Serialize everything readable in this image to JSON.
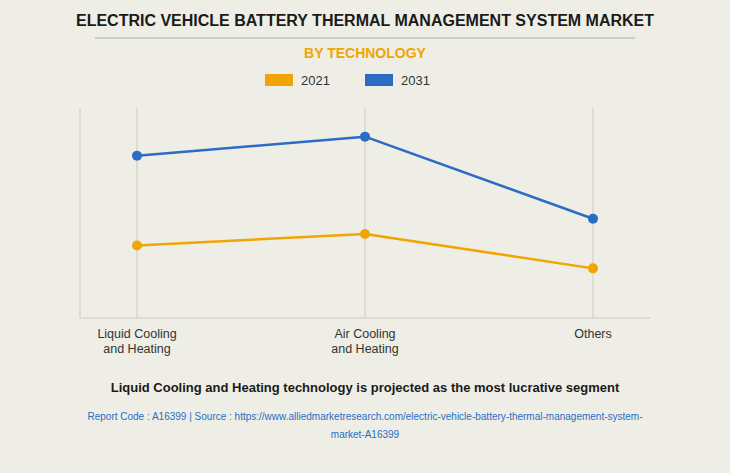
{
  "chart_data": {
    "type": "line",
    "title": "ELECTRIC VEHICLE BATTERY THERMAL MANAGEMENT SYSTEM MARKET",
    "subtitle": "BY TECHNOLOGY",
    "categories": [
      "Liquid Cooling\nand Heating",
      "Air Cooling\nand Heating",
      "Others"
    ],
    "series": [
      {
        "name": "2021",
        "color": "#F0A500",
        "values": [
          0.38,
          0.44,
          0.26
        ],
        "marker": "o"
      },
      {
        "name": "2031",
        "color": "#2B6CC4",
        "values": [
          0.85,
          0.95,
          0.52
        ],
        "marker": "o"
      }
    ],
    "ylim": [
      0.0,
      1.1
    ],
    "grid": true,
    "legend": "top",
    "tick_labels": "x",
    "annotations": [
      "Liquid Cooling and Heating technology is projected as the most lucrative segment",
      "Report Code : A16399  |  Source : https://www.alliedmarketresearch.com/electric-vehicle-battery-thermal-management-system-",
      "market-A16399"
    ]
  }
}
